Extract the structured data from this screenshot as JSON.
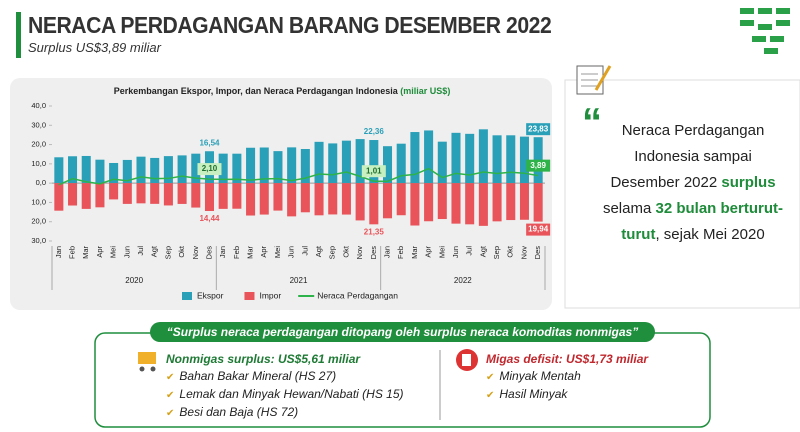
{
  "header": {
    "title": "NERACA PERDAGANGAN BARANG DESEMBER 2022",
    "subtitle": "Surplus US$3,89 miliar"
  },
  "chart_data": {
    "type": "bar",
    "title": "Perkembangan Ekspor, Impor, dan Neraca Perdagangan Indonesia",
    "title_unit": "(miliar US$)",
    "categories": [
      "Jan",
      "Feb",
      "Mar",
      "Apr",
      "Mei",
      "Jun",
      "Jul",
      "Agt",
      "Sep",
      "Okt",
      "Nov",
      "Des",
      "Jan",
      "Feb",
      "Mar",
      "Apr",
      "Mei",
      "Jun",
      "Jul",
      "Agt",
      "Sep",
      "Okt",
      "Nov",
      "Des",
      "Jan",
      "Feb",
      "Mar",
      "Apr",
      "Mei",
      "Jun",
      "Jul",
      "Agt",
      "Sep",
      "Okt",
      "Nov",
      "Des"
    ],
    "year_groups": [
      "2020",
      "2021",
      "2022"
    ],
    "series": [
      {
        "name": "Ekspor",
        "color": "#2a9fb8",
        "kind": "bar",
        "values": [
          13.41,
          13.94,
          14.09,
          12.16,
          10.45,
          12.03,
          13.73,
          13.07,
          14.01,
          14.39,
          15.28,
          16.54,
          15.3,
          15.27,
          18.35,
          18.48,
          16.6,
          18.55,
          17.7,
          21.42,
          20.6,
          22.03,
          22.84,
          22.36,
          19.16,
          20.46,
          26.5,
          27.32,
          21.51,
          26.09,
          25.57,
          27.91,
          24.8,
          24.81,
          24.12,
          23.83
        ],
        "value_labels": [
          null,
          null,
          null,
          null,
          null,
          null,
          null,
          null,
          null,
          null,
          null,
          "16,54",
          null,
          null,
          null,
          null,
          null,
          null,
          null,
          null,
          null,
          null,
          null,
          "22,36",
          null,
          null,
          null,
          null,
          null,
          null,
          null,
          null,
          null,
          null,
          null,
          "23,83"
        ]
      },
      {
        "name": "Impor",
        "color": "#e8545a",
        "kind": "bar",
        "values": [
          -14.28,
          -11.6,
          -13.35,
          -12.54,
          -8.44,
          -10.76,
          -10.47,
          -10.74,
          -11.57,
          -10.78,
          -12.66,
          -14.44,
          -13.34,
          -13.26,
          -16.79,
          -16.29,
          -14.23,
          -17.23,
          -15.11,
          -16.68,
          -16.23,
          -16.29,
          -19.33,
          -21.35,
          -18.23,
          -16.64,
          -21.97,
          -19.76,
          -18.61,
          -21.0,
          -21.35,
          -22.15,
          -19.81,
          -19.14,
          -19.0,
          -19.94
        ],
        "value_labels": [
          null,
          null,
          null,
          null,
          null,
          null,
          null,
          null,
          null,
          null,
          null,
          "14,44",
          null,
          null,
          null,
          null,
          null,
          null,
          null,
          null,
          null,
          null,
          null,
          "21,35",
          null,
          null,
          null,
          null,
          null,
          null,
          null,
          null,
          null,
          null,
          null,
          "19,94"
        ]
      },
      {
        "name": "Neraca Perdagangan",
        "color": "#2db34a",
        "kind": "line",
        "values": [
          -0.87,
          2.34,
          0.74,
          -0.38,
          2.01,
          1.27,
          3.26,
          2.33,
          2.44,
          3.61,
          2.62,
          2.1,
          1.96,
          2.01,
          1.56,
          2.19,
          2.37,
          1.32,
          2.59,
          4.74,
          4.37,
          5.74,
          3.51,
          1.01,
          0.93,
          3.83,
          4.53,
          7.56,
          2.9,
          5.09,
          4.23,
          5.76,
          4.99,
          5.67,
          5.16,
          3.89
        ],
        "value_labels": [
          null,
          null,
          null,
          null,
          null,
          null,
          null,
          null,
          null,
          null,
          null,
          "2,10",
          null,
          null,
          null,
          null,
          null,
          null,
          null,
          null,
          null,
          null,
          null,
          "1,01",
          null,
          null,
          null,
          null,
          null,
          null,
          null,
          null,
          null,
          null,
          null,
          "3,89"
        ]
      }
    ],
    "ylim": [
      -30,
      40
    ],
    "yticks": [
      {
        "value": 40,
        "label": "40,0"
      },
      {
        "value": 30,
        "label": "30,0"
      },
      {
        "value": 20,
        "label": "20,0"
      },
      {
        "value": 10,
        "label": "10,0"
      },
      {
        "value": 0,
        "label": "0,0"
      },
      {
        "value": -10,
        "label": "10,0"
      },
      {
        "value": -20,
        "label": "20,0"
      },
      {
        "value": -30,
        "label": "30,0"
      }
    ],
    "grid": false,
    "legend": "bottom"
  },
  "quote": [
    {
      "text": "Neraca Perdagangan Indonesia sampai Desember 2022 "
    },
    {
      "text": "surplus",
      "highlight": true
    },
    {
      "text": " selama "
    },
    {
      "text": "32 bulan berturut-turut",
      "highlight": true
    },
    {
      "text": ", sejak Mei 2020"
    }
  ],
  "summary": {
    "banner": "“Surplus neraca perdagangan ditopang oleh surplus neraca komoditas nonmigas”",
    "nonmigas": {
      "title": "Nonmigas surplus: US$5,61 miliar",
      "items": [
        "Bahan Bakar Mineral (HS 27)",
        "Lemak dan Minyak Hewan/Nabati (HS 15)",
        "Besi dan Baja (HS 72)"
      ]
    },
    "migas": {
      "title": "Migas defisit: US$1,73 miliar",
      "items": [
        "Minyak Mentah",
        "Hasil Minyak"
      ]
    }
  }
}
